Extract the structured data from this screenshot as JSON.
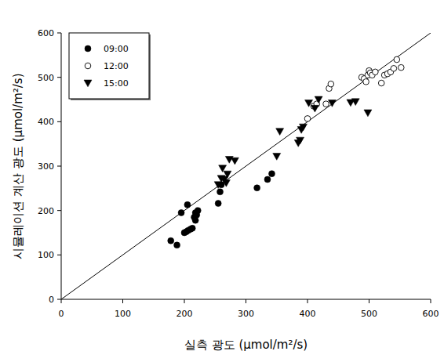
{
  "chart_data": {
    "type": "scatter",
    "xlabel": "실측 광도 (μmol/m²/s)",
    "ylabel": "시뮬레이션 계산 광도 (μmol/m²/s)",
    "xlim": [
      0,
      600
    ],
    "ylim": [
      0,
      600
    ],
    "xticks": [
      0,
      100,
      200,
      300,
      400,
      500,
      600
    ],
    "yticks": [
      0,
      100,
      200,
      300,
      400,
      500,
      600
    ],
    "legend": "upper left",
    "grid": false,
    "series": [
      {
        "name": "09:00",
        "color": "#000000",
        "marker": "circle",
        "x": [
          178,
          188,
          195,
          200,
          203,
          205,
          206,
          210,
          213,
          216,
          218,
          218,
          220,
          222,
          255,
          258,
          260,
          318,
          335,
          342
        ],
        "values": [
          132,
          122,
          195,
          150,
          152,
          213,
          155,
          158,
          160,
          185,
          195,
          178,
          190,
          200,
          216,
          242,
          258,
          251,
          270,
          283
        ]
      },
      {
        "name": "12:00",
        "color": "#000000",
        "marker": "circle-open",
        "x": [
          400,
          410,
          415,
          430,
          435,
          438,
          488,
          492,
          495,
          498,
          500,
          502,
          505,
          510,
          520,
          525,
          530,
          535,
          540,
          545,
          552
        ],
        "values": [
          407,
          435,
          440,
          440,
          475,
          485,
          500,
          497,
          490,
          505,
          515,
          510,
          505,
          512,
          487,
          505,
          508,
          512,
          520,
          540,
          522
        ]
      },
      {
        "name": "15:00",
        "color": "#000000",
        "marker": "triangle-down",
        "x": [
          255,
          260,
          262,
          265,
          268,
          270,
          273,
          282,
          350,
          355,
          385,
          388,
          390,
          393,
          402,
          412,
          418,
          440,
          470,
          478,
          498
        ],
        "values": [
          258,
          272,
          295,
          270,
          262,
          282,
          315,
          312,
          322,
          378,
          352,
          358,
          382,
          388,
          442,
          430,
          450,
          442,
          443,
          445,
          420
        ]
      },
      {
        "type": "line",
        "color": "#000000",
        "line_style": "solid",
        "x": [
          0,
          600
        ],
        "values": [
          0,
          600
        ]
      }
    ]
  }
}
